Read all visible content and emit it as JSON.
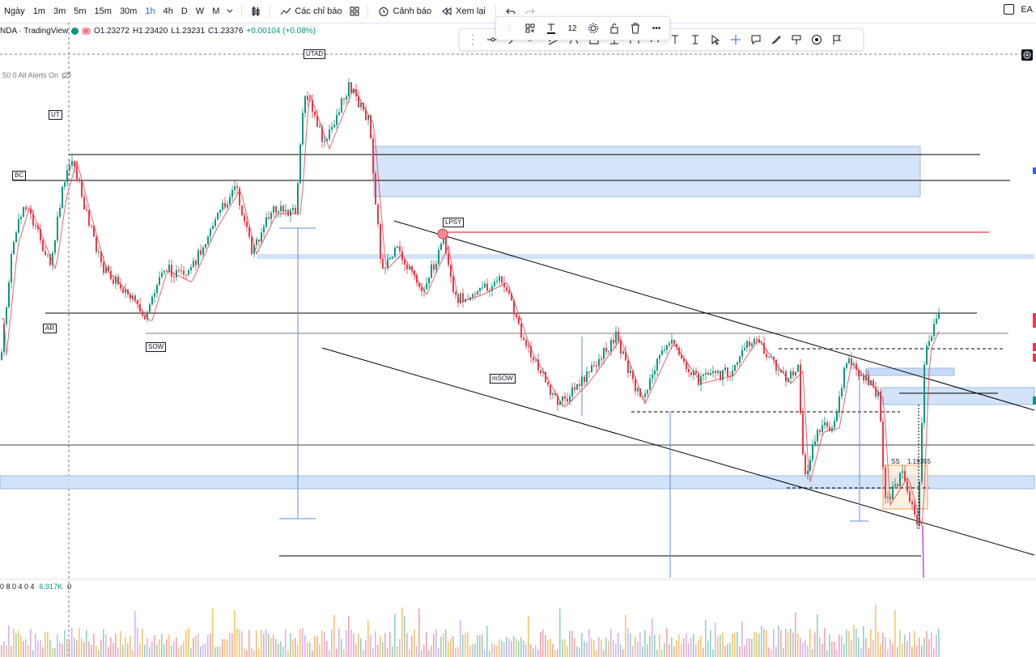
{
  "toolbar": {
    "timeframes": [
      "Ngày",
      "1m",
      "3m",
      "5m",
      "15m",
      "30m",
      "1h",
      "4h",
      "D",
      "W",
      "M"
    ],
    "active_timeframe": "1h",
    "indicators_label": "Các chỉ báo",
    "alerts_label": "Cảnh báo",
    "replay_label": "Xem lại",
    "right_label": "EA"
  },
  "legend": {
    "symbol": "NDA · TradingView",
    "open": "O1.23272",
    "high": "H1.23420",
    "low": "L1.23231",
    "close": "C1.23376",
    "change": "+0.00104 (+0.08%)"
  },
  "alerts_text": "50 0 All Alerts On",
  "volume_legend": {
    "a": "0 8 0 4 0 4",
    "b": "6.917K",
    "c": "0"
  },
  "floating_toolbar": {
    "font_size": "12"
  },
  "labels": {
    "utad": "UTAD",
    "ut": "UT",
    "bc": "BC",
    "ar": "AR",
    "sow": "SOW",
    "lpsy": "LPSY",
    "msow": "mSOW",
    "ss": "SS",
    "price": "1.19355"
  },
  "colors": {
    "accent": "#2962ff",
    "up": "#089981",
    "down": "#f23645",
    "zone": "#c7dbf7"
  }
}
